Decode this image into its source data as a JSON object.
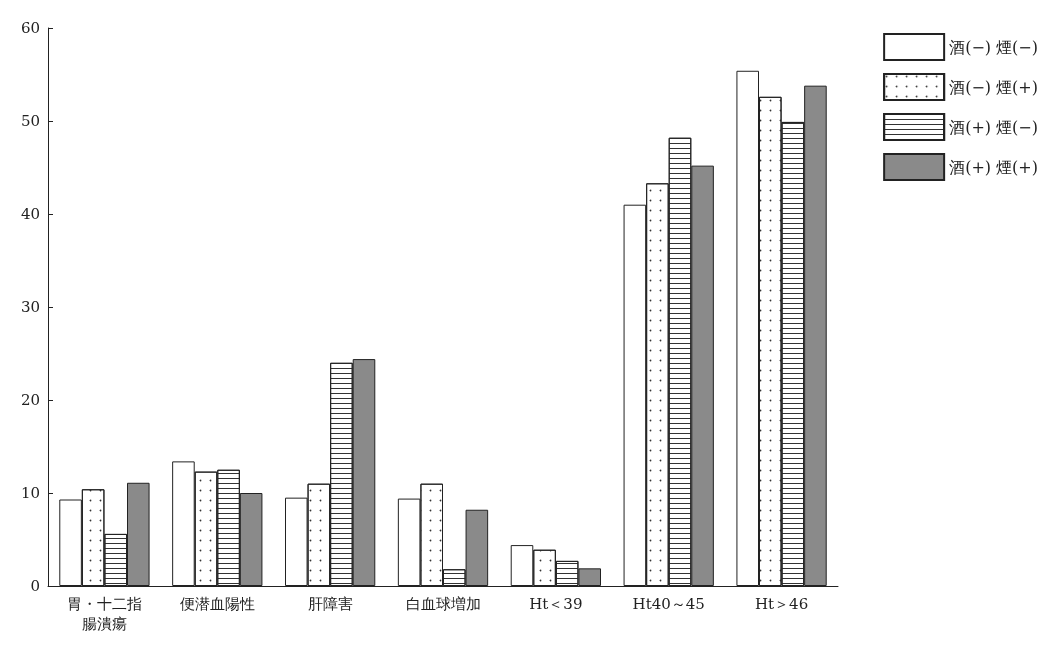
{
  "chart_data": {
    "type": "bar",
    "categories": [
      "胃・十二指腸潰瘍",
      "便潜血陽性",
      "肝障害",
      "白血球増加",
      "Ht＜39",
      "Ht40～45",
      "Ht＞46"
    ],
    "series": [
      {
        "name": "酒(−) 煙(−)",
        "color": "#ffffff",
        "values": [
          9.3,
          13.4,
          9.5,
          9.4,
          4.4,
          41.0,
          55.4
        ]
      },
      {
        "name": "酒(−) 煙(+)",
        "color": "#ffffff",
        "values": [
          10.4,
          12.3,
          11.0,
          11.0,
          3.9,
          43.3,
          52.6
        ]
      },
      {
        "name": "酒(+) 煙(−)",
        "color": "#ffffff",
        "values": [
          5.6,
          12.5,
          24.0,
          1.8,
          2.7,
          48.2,
          49.9
        ]
      },
      {
        "name": "酒(+) 煙(+)",
        "color": "#8a8a8a",
        "values": [
          11.1,
          10.0,
          24.4,
          8.2,
          1.9,
          45.2,
          53.8
        ]
      }
    ],
    "ylim": [
      0,
      60
    ],
    "yticks": [
      0,
      10,
      20,
      30,
      40,
      50,
      60
    ],
    "grid": false,
    "legend": "top right"
  }
}
